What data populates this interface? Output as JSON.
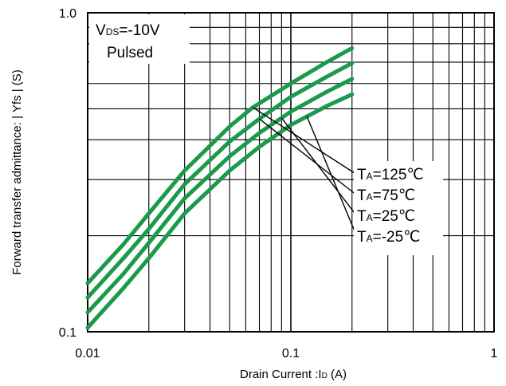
{
  "chart_data": {
    "type": "line",
    "title": "",
    "xlabel": "Drain Current :I",
    "xlabel_sub": "D",
    "xlabel_unit": " (A)",
    "ylabel": "Forward transfer admittance: | Yfs | (S)",
    "xscale": "log",
    "yscale": "log",
    "xlim": [
      0.01,
      1
    ],
    "ylim": [
      0.1,
      1.0
    ],
    "x_ticks": [
      "0.01",
      "0.1",
      "1"
    ],
    "y_ticks": [
      "0.1",
      "1.0"
    ],
    "grid": true,
    "line_color": "#1a9a4a",
    "condition": {
      "line1_main": "V",
      "line1_sub": "DS",
      "line1_rest": "=-10V",
      "line2": "Pulsed"
    },
    "series": [
      {
        "name": "T_A=125°C",
        "label_main": "T",
        "label_sub": "A",
        "label_rest": "=125℃",
        "x": [
          0.01,
          0.015,
          0.02,
          0.03,
          0.05,
          0.065,
          0.1,
          0.15,
          0.2
        ],
        "y": [
          0.142,
          0.188,
          0.235,
          0.32,
          0.44,
          0.505,
          0.6,
          0.7,
          0.775
        ]
      },
      {
        "name": "T_A=75°C",
        "label_main": "T",
        "label_sub": "A",
        "label_rest": "=75℃",
        "x": [
          0.01,
          0.015,
          0.02,
          0.03,
          0.05,
          0.07,
          0.1,
          0.15,
          0.2
        ],
        "y": [
          0.128,
          0.17,
          0.21,
          0.29,
          0.395,
          0.465,
          0.545,
          0.63,
          0.695
        ]
      },
      {
        "name": "T_A=25°C",
        "label_main": "T",
        "label_sub": "A",
        "label_rest": "=25℃",
        "x": [
          0.01,
          0.015,
          0.02,
          0.03,
          0.05,
          0.07,
          0.1,
          0.15,
          0.2
        ],
        "y": [
          0.115,
          0.152,
          0.19,
          0.262,
          0.355,
          0.42,
          0.49,
          0.565,
          0.62
        ]
      },
      {
        "name": "T_A=-25°C",
        "label_main": "T",
        "label_sub": "A",
        "label_rest": "=-25℃",
        "x": [
          0.01,
          0.015,
          0.02,
          0.03,
          0.05,
          0.07,
          0.1,
          0.15,
          0.2
        ],
        "y": [
          0.103,
          0.137,
          0.17,
          0.235,
          0.32,
          0.38,
          0.445,
          0.51,
          0.555
        ]
      }
    ]
  }
}
